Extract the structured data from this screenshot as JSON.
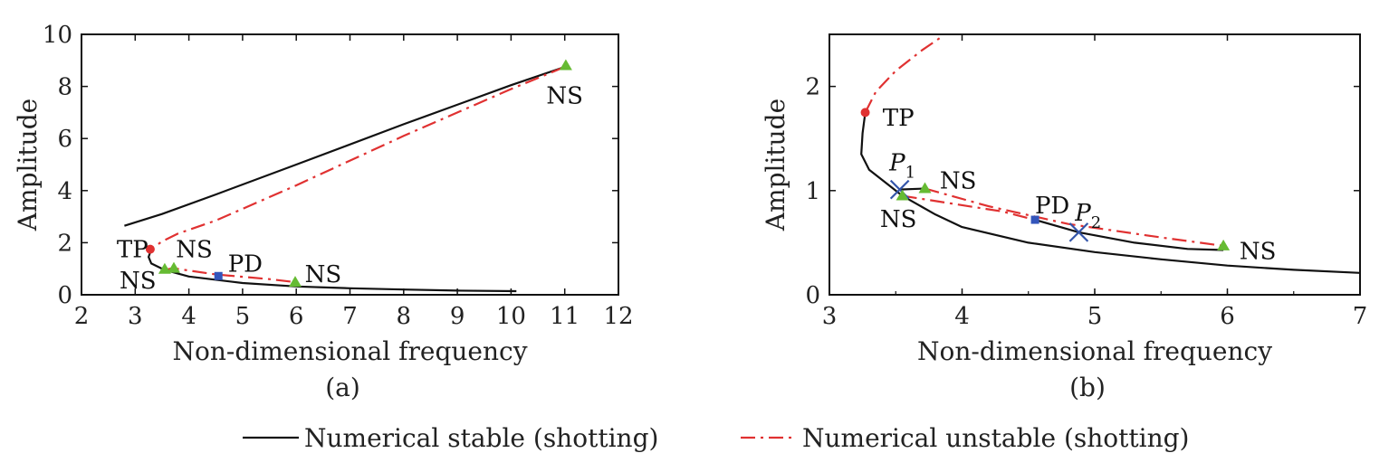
{
  "colors": {
    "stable": "#111111",
    "unstable": "#e03131",
    "ns_marker": "#66bb33",
    "tp_marker": "#e03131",
    "pd_marker": "#3355bb",
    "cross_marker": "#3355aa"
  },
  "legend": {
    "stable_label": "Numerical stable (shotting)",
    "unstable_label": "Numerical unstable (shotting)",
    "placement": "bottom-center"
  },
  "chart_data": [
    {
      "type": "line",
      "panel_label": "(a)",
      "xlabel": "Non-dimensional frequency",
      "ylabel": "Amplitude",
      "xlim": [
        2,
        12
      ],
      "ylim": [
        0,
        10
      ],
      "xticks": [
        "2",
        "3",
        "4",
        "5",
        "6",
        "7",
        "8",
        "9",
        "10",
        "11",
        "12"
      ],
      "yticks": [
        "0",
        "2",
        "4",
        "6",
        "8",
        "10"
      ],
      "grid": false,
      "series": [
        {
          "style": "stable",
          "points": [
            [
              2.8,
              2.65
            ],
            [
              3.5,
              3.1
            ],
            [
              4.5,
              3.85
            ],
            [
              6,
              5.0
            ],
            [
              8,
              6.55
            ],
            [
              10,
              8.05
            ],
            [
              11.0,
              8.75
            ]
          ]
        },
        {
          "style": "unstable",
          "points": [
            [
              11.0,
              8.75
            ],
            [
              10,
              7.9
            ],
            [
              8,
              6.1
            ],
            [
              6,
              4.2
            ],
            [
              4.5,
              2.85
            ],
            [
              3.8,
              2.35
            ],
            [
              3.5,
              2.05
            ],
            [
              3.3,
              1.75
            ]
          ]
        },
        {
          "style": "stable",
          "points": [
            [
              3.3,
              1.75
            ],
            [
              3.25,
              1.45
            ],
            [
              3.3,
              1.2
            ],
            [
              3.55,
              0.95
            ],
            [
              4,
              0.7
            ],
            [
              5,
              0.45
            ],
            [
              6,
              0.32
            ],
            [
              7,
              0.25
            ],
            [
              8,
              0.2
            ],
            [
              9,
              0.16
            ],
            [
              10.1,
              0.14
            ]
          ]
        },
        {
          "style": "unstable",
          "points": [
            [
              3.55,
              0.95
            ],
            [
              3.7,
              1.02
            ],
            [
              4.5,
              0.78
            ],
            [
              5.5,
              0.6
            ],
            [
              6.0,
              0.48
            ]
          ]
        }
      ],
      "markers": [
        {
          "kind": "tp",
          "x": 3.28,
          "y": 1.75
        },
        {
          "kind": "ns",
          "x": 3.55,
          "y": 0.98
        },
        {
          "kind": "ns",
          "x": 3.72,
          "y": 1.02
        },
        {
          "kind": "pd",
          "x": 4.55,
          "y": 0.72
        },
        {
          "kind": "ns",
          "x": 5.98,
          "y": 0.48
        },
        {
          "kind": "ns",
          "x": 11.02,
          "y": 8.8
        }
      ],
      "annotations": [
        {
          "text": "TP",
          "x": 2.95,
          "y": 1.75
        },
        {
          "text": "NS",
          "x": 4.1,
          "y": 1.75
        },
        {
          "text": "NS",
          "x": 3.05,
          "y": 0.55
        },
        {
          "text": "PD",
          "x": 5.05,
          "y": 1.2
        },
        {
          "text": "NS",
          "x": 6.5,
          "y": 0.8
        },
        {
          "text": "NS",
          "x": 11.0,
          "y": 7.65
        }
      ]
    },
    {
      "type": "line",
      "panel_label": "(b)",
      "xlabel": "Non-dimensional frequency",
      "ylabel": "Amplitude",
      "xlim": [
        3,
        7
      ],
      "ylim": [
        0,
        2.5
      ],
      "xticks": [
        "3",
        "4",
        "5",
        "6",
        "7"
      ],
      "yticks": [
        "0",
        "1",
        "2"
      ],
      "grid": false,
      "series": [
        {
          "style": "unstable",
          "points": [
            [
              3.27,
              1.75
            ],
            [
              3.35,
              1.95
            ],
            [
              3.5,
              2.15
            ],
            [
              3.7,
              2.35
            ],
            [
              3.85,
              2.48
            ]
          ]
        },
        {
          "style": "stable",
          "points": [
            [
              3.27,
              1.75
            ],
            [
              3.25,
              1.55
            ],
            [
              3.24,
              1.35
            ],
            [
              3.3,
              1.2
            ],
            [
              3.45,
              1.05
            ],
            [
              3.55,
              0.95
            ],
            [
              3.8,
              0.77
            ],
            [
              4.0,
              0.65
            ],
            [
              4.5,
              0.5
            ],
            [
              5.0,
              0.41
            ],
            [
              5.5,
              0.34
            ],
            [
              6.0,
              0.28
            ],
            [
              6.5,
              0.24
            ],
            [
              7.0,
              0.21
            ]
          ]
        },
        {
          "style": "stable",
          "points": [
            [
              3.53,
              1.01
            ],
            [
              3.72,
              1.02
            ]
          ]
        },
        {
          "style": "unstable",
          "points": [
            [
              3.55,
              0.95
            ],
            [
              3.9,
              0.88
            ],
            [
              4.3,
              0.8
            ],
            [
              4.55,
              0.72
            ]
          ]
        },
        {
          "style": "unstable",
          "points": [
            [
              3.72,
              1.02
            ],
            [
              4.2,
              0.85
            ],
            [
              4.8,
              0.68
            ],
            [
              5.5,
              0.55
            ],
            [
              5.97,
              0.47
            ]
          ]
        },
        {
          "style": "stable",
          "points": [
            [
              4.55,
              0.72
            ],
            [
              4.88,
              0.6
            ],
            [
              5.3,
              0.5
            ],
            [
              5.7,
              0.44
            ],
            [
              5.97,
              0.43
            ]
          ]
        }
      ],
      "markers": [
        {
          "kind": "tp",
          "x": 3.27,
          "y": 1.75
        },
        {
          "kind": "cross",
          "x": 3.53,
          "y": 1.01
        },
        {
          "kind": "ns",
          "x": 3.72,
          "y": 1.02
        },
        {
          "kind": "ns",
          "x": 3.55,
          "y": 0.95
        },
        {
          "kind": "pd",
          "x": 4.55,
          "y": 0.72
        },
        {
          "kind": "cross",
          "x": 4.88,
          "y": 0.6
        },
        {
          "kind": "ns",
          "x": 5.97,
          "y": 0.47
        }
      ],
      "annotations": [
        {
          "text": "TP",
          "x": 3.52,
          "y": 1.7
        },
        {
          "text": "P",
          "sub": "1",
          "x": 3.55,
          "y": 1.27
        },
        {
          "text": "NS",
          "x": 3.97,
          "y": 1.1
        },
        {
          "text": "NS",
          "x": 3.52,
          "y": 0.73
        },
        {
          "text": "PD",
          "x": 4.68,
          "y": 0.86
        },
        {
          "text": "P",
          "sub": "2",
          "x": 4.95,
          "y": 0.79
        },
        {
          "text": "NS",
          "x": 6.23,
          "y": 0.42
        }
      ]
    }
  ]
}
